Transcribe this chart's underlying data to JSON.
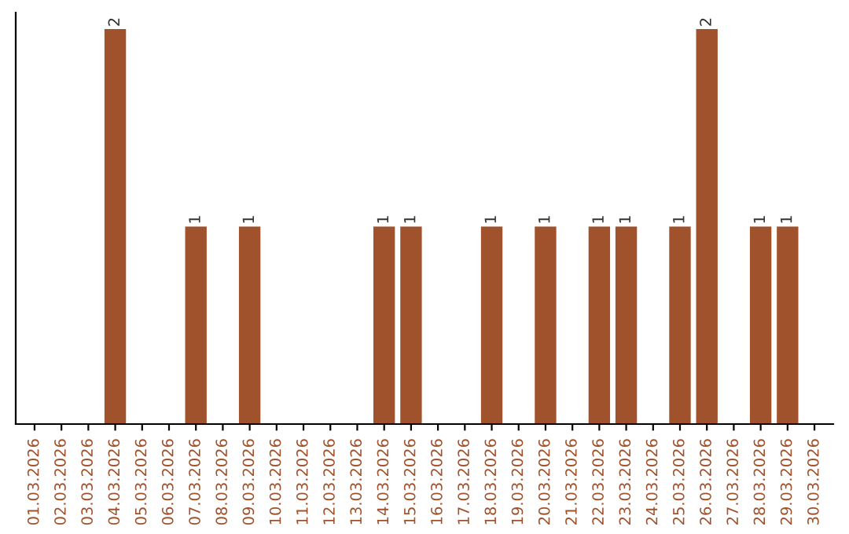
{
  "chart_data": {
    "type": "bar",
    "categories": [
      "01.03.2026",
      "02.03.2026",
      "03.03.2026",
      "04.03.2026",
      "05.03.2026",
      "06.03.2026",
      "07.03.2026",
      "08.03.2026",
      "09.03.2026",
      "10.03.2026",
      "11.03.2026",
      "12.03.2026",
      "13.03.2026",
      "14.03.2026",
      "15.03.2026",
      "16.03.2026",
      "17.03.2026",
      "18.03.2026",
      "19.03.2026",
      "20.03.2026",
      "21.03.2026",
      "22.03.2026",
      "23.03.2026",
      "24.03.2026",
      "25.03.2026",
      "26.03.2026",
      "27.03.2026",
      "28.03.2026",
      "29.03.2026",
      "30.03.2026"
    ],
    "values": [
      0,
      0,
      0,
      2,
      0,
      0,
      1,
      0,
      1,
      0,
      0,
      0,
      0,
      1,
      1,
      0,
      0,
      1,
      0,
      1,
      0,
      1,
      1,
      0,
      1,
      2,
      0,
      1,
      1,
      0
    ],
    "value_labels": [
      null,
      null,
      null,
      "2",
      null,
      null,
      "1",
      null,
      "1",
      null,
      null,
      null,
      null,
      "1",
      "1",
      null,
      null,
      "1",
      null,
      "1",
      null,
      "1",
      "1",
      null,
      "1",
      "2",
      null,
      "1",
      "1",
      null
    ],
    "color": "#a0522d",
    "tick_labels": "x",
    "grid": false,
    "legend": false
  }
}
